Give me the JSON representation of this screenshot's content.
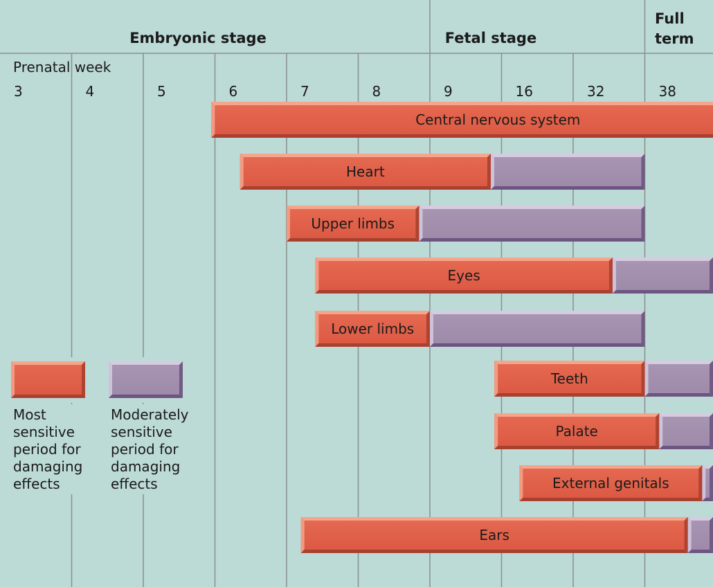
{
  "chart_data": {
    "type": "gantt",
    "stages": [
      {
        "label": "Embryonic stage"
      },
      {
        "label": "Fetal stage"
      },
      {
        "label_lines": [
          "Full",
          "term"
        ]
      }
    ],
    "axis_label": "Prenatal week",
    "weeks": [
      "3",
      "4",
      "5",
      "6",
      "7",
      "8",
      "9",
      "16",
      "32",
      "38"
    ],
    "series_colors": {
      "most": "#e05e48",
      "moderate": "#a28dae"
    },
    "bars": [
      {
        "name": "Central nervous system",
        "most": [
          2.95,
          10.95
        ],
        "moderate": [
          10.95,
          12.9
        ]
      },
      {
        "name": "Heart",
        "most": [
          3.35,
          6.85
        ],
        "moderate": [
          6.85,
          9.0
        ]
      },
      {
        "name": "Upper limbs",
        "most": [
          4.0,
          5.85
        ],
        "moderate": [
          5.85,
          9.0
        ]
      },
      {
        "name": "Eyes",
        "most": [
          4.4,
          8.55
        ],
        "moderate": [
          8.55,
          12.9
        ]
      },
      {
        "name": "Lower limbs",
        "most": [
          4.4,
          6.0
        ],
        "moderate": [
          6.0,
          9.0
        ]
      },
      {
        "name": "Teeth",
        "most": [
          6.9,
          9.0
        ],
        "moderate": [
          9.0,
          12.9
        ]
      },
      {
        "name": "Palate",
        "most": [
          6.9,
          9.2
        ],
        "moderate": [
          9.2,
          10.05
        ]
      },
      {
        "name": "External genitals",
        "most": [
          7.25,
          9.8
        ],
        "moderate": [
          9.8,
          12.9
        ]
      },
      {
        "name": "Ears",
        "most": [
          4.2,
          9.6
        ],
        "moderate": [
          9.6,
          11.2
        ]
      }
    ],
    "legend": [
      {
        "key": "most",
        "lines": [
          "Most",
          "sensitive",
          "period for",
          "damaging",
          "effects"
        ]
      },
      {
        "key": "moderate",
        "lines": [
          "Moderately",
          "sensitive",
          "period for",
          "damaging",
          "effects"
        ]
      }
    ]
  }
}
